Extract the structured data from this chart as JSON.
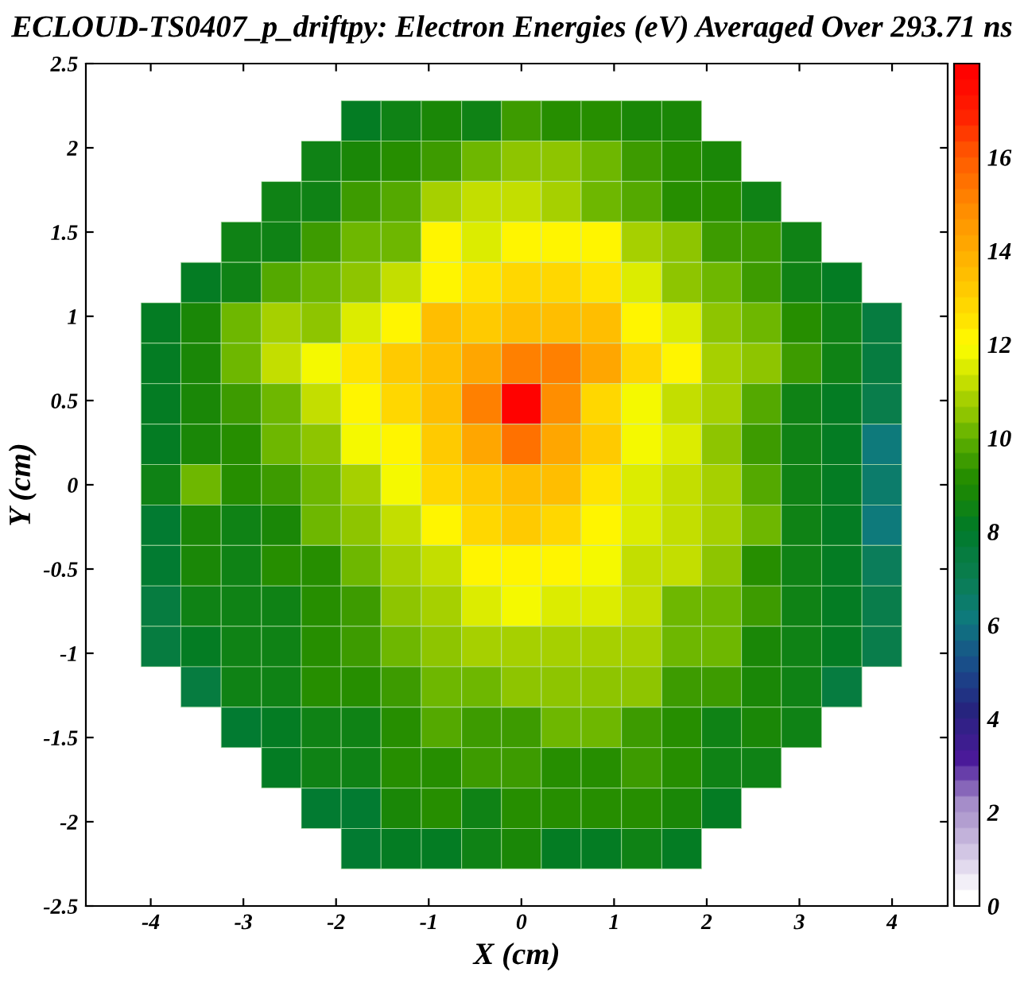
{
  "chart_data": {
    "type": "heatmap",
    "title": "ECLOUD-TS0407_p_driftpy: Electron Energies (eV) Averaged Over 293.71 ns",
    "xlabel": "X (cm)",
    "ylabel": "Y (cm)",
    "x": [
      -3.89,
      -3.46,
      -3.02,
      -2.59,
      -2.16,
      -1.73,
      -1.3,
      -0.86,
      -0.43,
      0,
      0.43,
      0.86,
      1.3,
      1.73,
      2.16,
      2.59,
      3.02,
      3.46,
      3.89
    ],
    "y": [
      2.16,
      1.92,
      1.68,
      1.44,
      1.2,
      0.96,
      0.72,
      0.48,
      0.24,
      0,
      -0.24,
      -0.48,
      -0.72,
      -0.96,
      -1.2,
      -1.44,
      -1.68,
      -1.92,
      -2.16
    ],
    "cells": [
      [
        null,
        null,
        null,
        null,
        null,
        8.3,
        8.5,
        8.7,
        8.5,
        9.6,
        9.1,
        9.2,
        8.7,
        8.9,
        null,
        null,
        null,
        null,
        null
      ],
      [
        null,
        null,
        null,
        null,
        8.6,
        8.7,
        9.2,
        9.6,
        10.0,
        10.4,
        10.4,
        10.0,
        9.6,
        9.2,
        8.7,
        null,
        null,
        null,
        null
      ],
      [
        null,
        null,
        null,
        8.5,
        8.6,
        9.5,
        9.9,
        10.8,
        11.3,
        11.2,
        10.8,
        10.1,
        9.9,
        9.3,
        9.1,
        8.6,
        null,
        null,
        null
      ],
      [
        null,
        null,
        8.4,
        8.5,
        9.6,
        10.3,
        10.0,
        12.1,
        11.6,
        12.1,
        12.2,
        12.1,
        10.8,
        10.6,
        9.6,
        9.5,
        8.6,
        null,
        null
      ],
      [
        null,
        8.0,
        8.6,
        9.9,
        10.3,
        10.6,
        11.2,
        12.2,
        12.6,
        12.9,
        12.8,
        12.6,
        11.6,
        10.6,
        10.2,
        9.4,
        8.6,
        8.3,
        null
      ],
      [
        8.2,
        8.7,
        10.0,
        10.8,
        10.6,
        11.5,
        12.2,
        13.4,
        13.3,
        13.5,
        13.4,
        13.4,
        12.2,
        11.6,
        10.6,
        10.2,
        9.3,
        8.6,
        7.5
      ],
      [
        8.2,
        8.7,
        10.0,
        11.2,
        11.7,
        12.5,
        13.1,
        13.6,
        14.0,
        15.0,
        15.2,
        14.2,
        12.9,
        12.3,
        10.9,
        10.6,
        9.4,
        8.6,
        7.5
      ],
      [
        8.2,
        8.7,
        9.5,
        10.0,
        11.1,
        12.2,
        12.7,
        13.4,
        15.2,
        17.8,
        14.8,
        12.9,
        11.7,
        11.2,
        10.8,
        9.9,
        8.6,
        8.0,
        7.0
      ],
      [
        8.2,
        8.7,
        9.2,
        10.0,
        10.6,
        11.7,
        12.2,
        13.1,
        14.2,
        15.4,
        14.2,
        13.0,
        11.8,
        11.6,
        10.6,
        9.4,
        8.6,
        8.0,
        6.1
      ],
      [
        8.6,
        10.1,
        9.1,
        9.6,
        10.3,
        10.8,
        11.7,
        12.8,
        13.3,
        13.5,
        13.6,
        12.6,
        11.6,
        11.2,
        10.8,
        9.7,
        8.5,
        8.0,
        6.6
      ],
      [
        7.8,
        8.9,
        8.6,
        8.9,
        10.0,
        10.4,
        11.2,
        12.2,
        12.8,
        13.0,
        12.8,
        12.2,
        11.6,
        11.2,
        10.8,
        10.3,
        8.5,
        8.0,
        6.1
      ],
      [
        7.8,
        8.9,
        8.6,
        9.0,
        9.3,
        10.0,
        10.8,
        11.0,
        12.2,
        12.2,
        12.2,
        11.7,
        11.3,
        11.0,
        10.6,
        9.3,
        8.5,
        8.0,
        6.8
      ],
      [
        7.5,
        8.5,
        8.5,
        8.5,
        9.0,
        9.6,
        10.4,
        10.8,
        11.5,
        11.7,
        11.6,
        11.6,
        11.3,
        10.2,
        10.0,
        9.4,
        8.5,
        8.0,
        7.3
      ],
      [
        7.5,
        8.3,
        8.5,
        8.5,
        9.0,
        9.6,
        10.0,
        10.4,
        10.8,
        10.9,
        10.9,
        10.8,
        10.8,
        10.3,
        10.0,
        8.9,
        8.5,
        8.0,
        7.3
      ],
      [
        null,
        7.6,
        8.4,
        8.5,
        9.0,
        9.1,
        9.6,
        10.0,
        10.3,
        10.5,
        10.5,
        10.4,
        10.4,
        9.6,
        9.6,
        8.9,
        8.5,
        7.6,
        null
      ],
      [
        null,
        null,
        7.8,
        8.3,
        8.6,
        8.6,
        9.2,
        9.8,
        9.5,
        9.5,
        10.0,
        10.0,
        9.5,
        9.3,
        8.6,
        8.7,
        8.6,
        null,
        null
      ],
      [
        null,
        null,
        null,
        8.0,
        8.5,
        8.5,
        9.2,
        9.3,
        9.6,
        9.5,
        9.3,
        9.3,
        9.5,
        9.0,
        8.5,
        8.5,
        null,
        null,
        null
      ],
      [
        null,
        null,
        null,
        null,
        7.8,
        7.9,
        8.7,
        9.1,
        8.6,
        9.1,
        9.2,
        9.2,
        9.2,
        8.7,
        8.0,
        null,
        null,
        null,
        null
      ],
      [
        null,
        null,
        null,
        null,
        null,
        7.8,
        8.1,
        8.2,
        8.4,
        8.8,
        8.2,
        8.3,
        8.4,
        8.3,
        null,
        null,
        null,
        null,
        null
      ]
    ],
    "clim": [
      0,
      18
    ],
    "cticks": [
      0,
      2,
      4,
      6,
      8,
      10,
      12,
      14,
      16
    ],
    "xlim": [
      -4.7,
      4.6
    ],
    "ylim": [
      -2.5,
      2.5
    ],
    "xticks": [
      -4,
      -3,
      -2,
      -1,
      0,
      1,
      2,
      3,
      4
    ],
    "yticks": [
      -2.5,
      -2,
      -1.5,
      -1,
      -0.5,
      0,
      0.5,
      1,
      1.5,
      2,
      2.5
    ],
    "grid": false
  }
}
